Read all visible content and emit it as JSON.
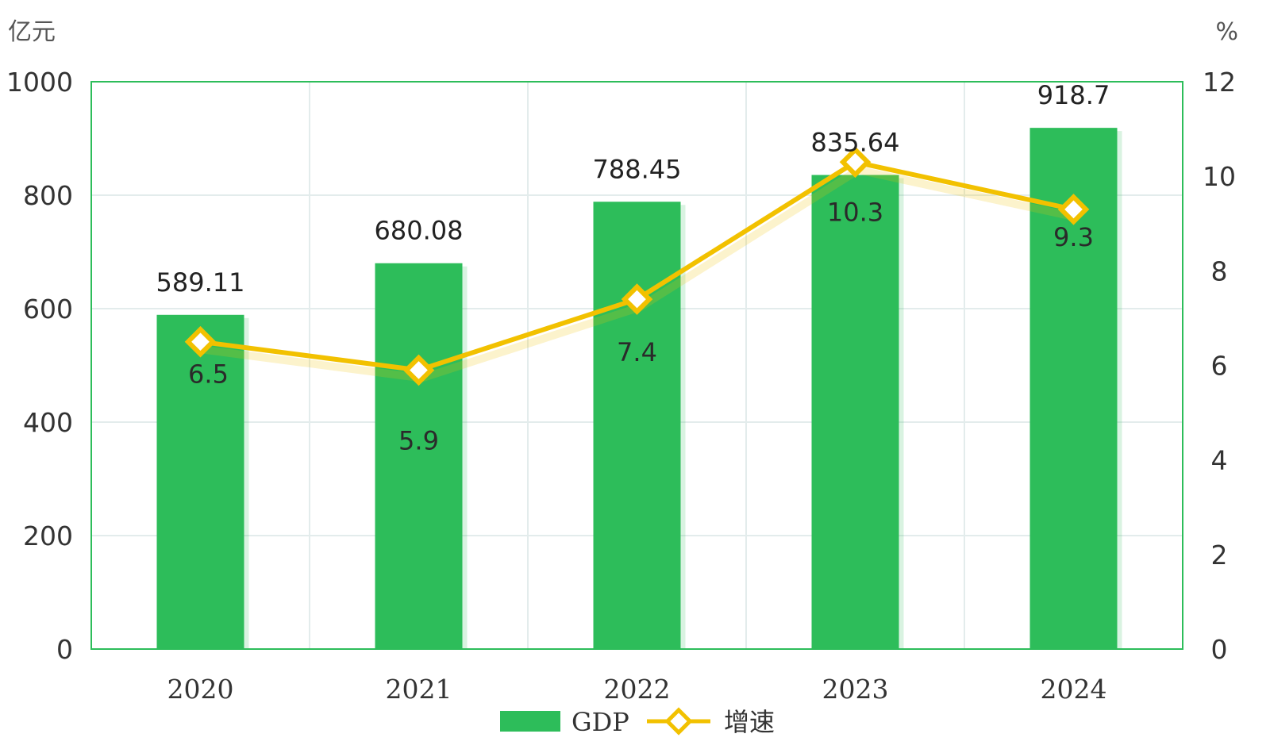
{
  "chart_data": {
    "type": "bar",
    "categories": [
      "2020",
      "2021",
      "2022",
      "2023",
      "2024"
    ],
    "series": [
      {
        "name": "GDP",
        "type": "bar",
        "axis": "left",
        "values": [
          589.11,
          680.08,
          788.45,
          835.64,
          918.7
        ],
        "labels": [
          "589.11",
          "680.08",
          "788.45",
          "835.64",
          "918.7"
        ]
      },
      {
        "name": "增速",
        "type": "line",
        "axis": "right",
        "values": [
          6.5,
          5.9,
          7.4,
          10.3,
          9.3
        ],
        "labels": [
          "6.5",
          "5.9",
          "7.4",
          "10.3",
          "9.3"
        ]
      }
    ],
    "y_left": {
      "unit": "亿元",
      "ylim": [
        0,
        1000
      ],
      "ticks": [
        "0",
        "200",
        "400",
        "600",
        "800",
        "1000"
      ]
    },
    "y_right": {
      "unit": "%",
      "ylim": [
        0,
        12
      ],
      "ticks": [
        "0",
        "2",
        "4",
        "6",
        "8",
        "10",
        "12"
      ]
    },
    "grid": true,
    "legend_position": "bottom-center",
    "colors": {
      "bar": "#2dbd5a",
      "line": "#f2c100",
      "frame": "#2dbd5a",
      "grid": "#e3ecec"
    }
  }
}
